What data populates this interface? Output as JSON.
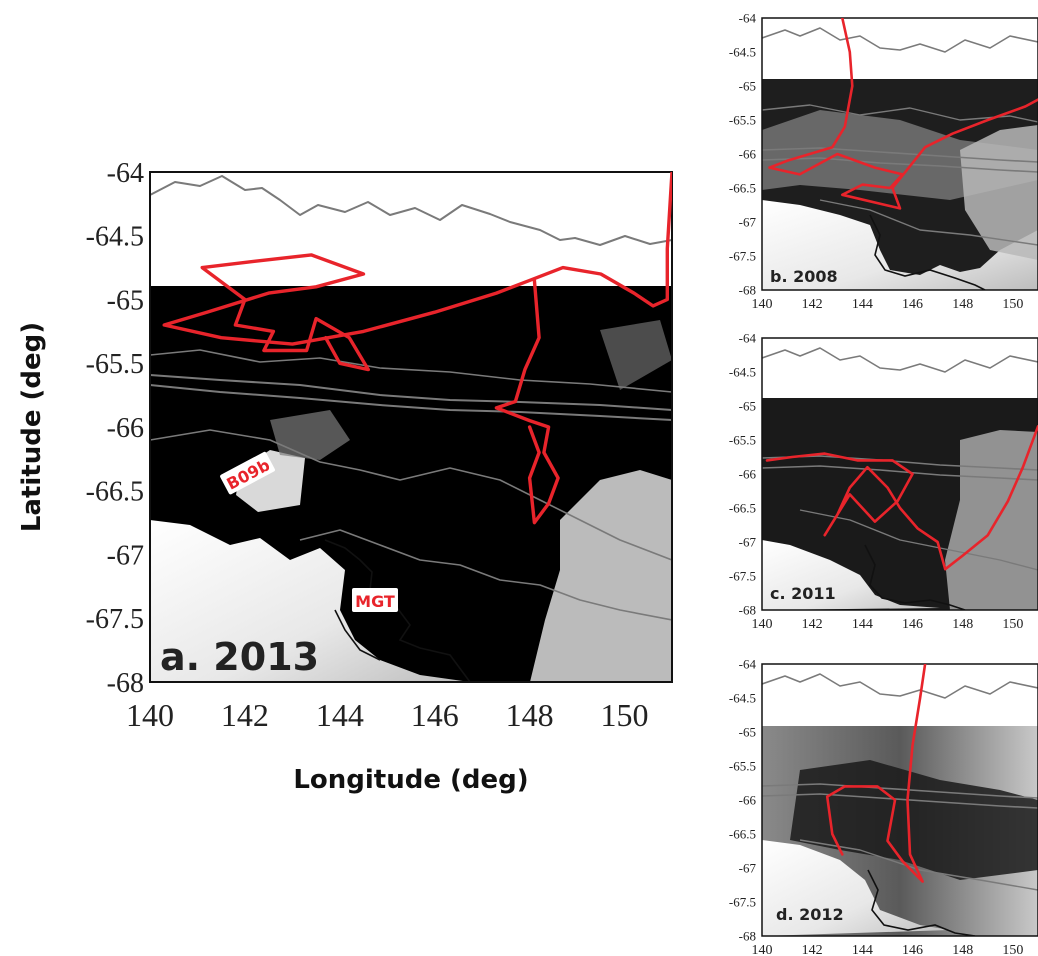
{
  "figure": {
    "panels": [
      {
        "id": "a",
        "label": "a. 2013"
      },
      {
        "id": "b",
        "label": "b. 2008"
      },
      {
        "id": "c",
        "label": "c. 2011"
      },
      {
        "id": "d",
        "label": "d. 2012"
      }
    ],
    "xlabel": "Longitude (deg)",
    "ylabel": "Latitude (deg)",
    "x_ticks": [
      "140",
      "142",
      "144",
      "146",
      "148",
      "150"
    ],
    "y_ticks": [
      "-64",
      "-64.5",
      "-65",
      "-65.5",
      "-66",
      "-66.5",
      "-67",
      "-67.5",
      "-68"
    ],
    "annotations": [
      {
        "panel": "a",
        "text": "B09b"
      },
      {
        "panel": "a",
        "text": "MGT"
      }
    ],
    "colors": {
      "track": "#e8242b",
      "contour": "#7a7a7a",
      "coastline": "#111111",
      "ice_dark": "#000000",
      "land_ice": "#ffffff"
    }
  },
  "chart_data": {
    "type": "map",
    "xlim": [
      140,
      151
    ],
    "ylim": [
      -68,
      -64
    ],
    "image_top_lat": -64.9,
    "series": [
      {
        "panel": "a",
        "track": [
          [
            151,
            -64
          ],
          [
            150.9,
            -64.6
          ],
          [
            150.9,
            -65.0
          ],
          [
            150.6,
            -65.05
          ],
          [
            150.2,
            -64.95
          ],
          [
            149.5,
            -64.8
          ],
          [
            148.7,
            -64.75
          ],
          [
            148.0,
            -64.85
          ],
          [
            147.3,
            -64.95
          ],
          [
            146.0,
            -65.1
          ],
          [
            144.5,
            -65.25
          ],
          [
            143.0,
            -65.35
          ],
          [
            141.5,
            -65.3
          ],
          [
            140.3,
            -65.2
          ],
          [
            141.2,
            -65.1
          ],
          [
            142.5,
            -64.95
          ],
          [
            143.5,
            -64.9
          ],
          [
            144.5,
            -64.8
          ],
          [
            143.4,
            -64.65
          ],
          [
            142.2,
            -64.7
          ],
          [
            141.1,
            -64.75
          ],
          [
            142.0,
            -65.0
          ],
          [
            141.8,
            -65.2
          ],
          [
            142.6,
            -65.25
          ],
          [
            142.4,
            -65.4
          ],
          [
            143.3,
            -65.4
          ],
          [
            143.5,
            -65.15
          ],
          [
            144.2,
            -65.3
          ],
          [
            144.6,
            -65.55
          ],
          [
            144.0,
            -65.5
          ],
          [
            143.7,
            -65.3
          ]
        ]
      },
      {
        "panel": "a",
        "track": [
          [
            148.1,
            -64.85
          ],
          [
            148.2,
            -65.3
          ],
          [
            147.9,
            -65.55
          ],
          [
            147.7,
            -65.8
          ],
          [
            147.3,
            -65.85
          ],
          [
            148.0,
            -65.95
          ],
          [
            148.4,
            -66.0
          ],
          [
            148.3,
            -66.2
          ],
          [
            148.6,
            -66.4
          ],
          [
            148.4,
            -66.6
          ],
          [
            148.1,
            -66.75
          ],
          [
            148.0,
            -66.4
          ],
          [
            148.2,
            -66.2
          ],
          [
            148.0,
            -66.0
          ]
        ]
      },
      {
        "panel": "b",
        "track": [
          [
            143.2,
            -64
          ],
          [
            143.5,
            -64.5
          ],
          [
            143.6,
            -65.0
          ],
          [
            143.3,
            -65.6
          ],
          [
            142.8,
            -65.9
          ],
          [
            141.0,
            -66.1
          ],
          [
            140.3,
            -66.2
          ],
          [
            141.5,
            -66.3
          ],
          [
            143.0,
            -66.0
          ],
          [
            144.5,
            -66.2
          ],
          [
            145.6,
            -66.3
          ],
          [
            145.1,
            -66.5
          ],
          [
            144.0,
            -66.45
          ],
          [
            143.2,
            -66.6
          ],
          [
            145.5,
            -66.8
          ],
          [
            145.2,
            -66.5
          ],
          [
            146.5,
            -65.9
          ],
          [
            147.6,
            -65.7
          ],
          [
            149.0,
            -65.5
          ],
          [
            150.5,
            -65.3
          ],
          [
            151,
            -65.2
          ]
        ]
      },
      {
        "panel": "c",
        "track": [
          [
            151,
            -65.3
          ],
          [
            150.4,
            -65.9
          ],
          [
            149.8,
            -66.4
          ],
          [
            149.0,
            -66.9
          ],
          [
            148.0,
            -67.2
          ],
          [
            147.3,
            -67.4
          ],
          [
            147.0,
            -67.0
          ],
          [
            146.2,
            -66.8
          ],
          [
            145.5,
            -66.5
          ],
          [
            145.0,
            -66.2
          ],
          [
            144.2,
            -65.9
          ],
          [
            143.5,
            -66.2
          ],
          [
            143.0,
            -66.6
          ],
          [
            142.5,
            -66.9
          ],
          [
            143.5,
            -66.3
          ],
          [
            144.5,
            -66.7
          ],
          [
            145.4,
            -66.4
          ],
          [
            146.0,
            -66.0
          ],
          [
            145.2,
            -65.8
          ],
          [
            143.8,
            -65.8
          ],
          [
            142.5,
            -65.7
          ],
          [
            141.2,
            -65.75
          ],
          [
            140.2,
            -65.8
          ]
        ]
      },
      {
        "panel": "d",
        "track": [
          [
            146.5,
            -64
          ],
          [
            146.3,
            -64.5
          ],
          [
            146.0,
            -65.2
          ],
          [
            145.8,
            -66.0
          ],
          [
            145.9,
            -66.8
          ],
          [
            146.4,
            -67.2
          ],
          [
            145.6,
            -66.9
          ],
          [
            145.0,
            -66.6
          ],
          [
            145.3,
            -66.0
          ],
          [
            144.6,
            -65.8
          ],
          [
            143.3,
            -65.8
          ],
          [
            142.6,
            -65.95
          ],
          [
            142.8,
            -66.5
          ],
          [
            143.2,
            -66.8
          ]
        ]
      }
    ]
  }
}
